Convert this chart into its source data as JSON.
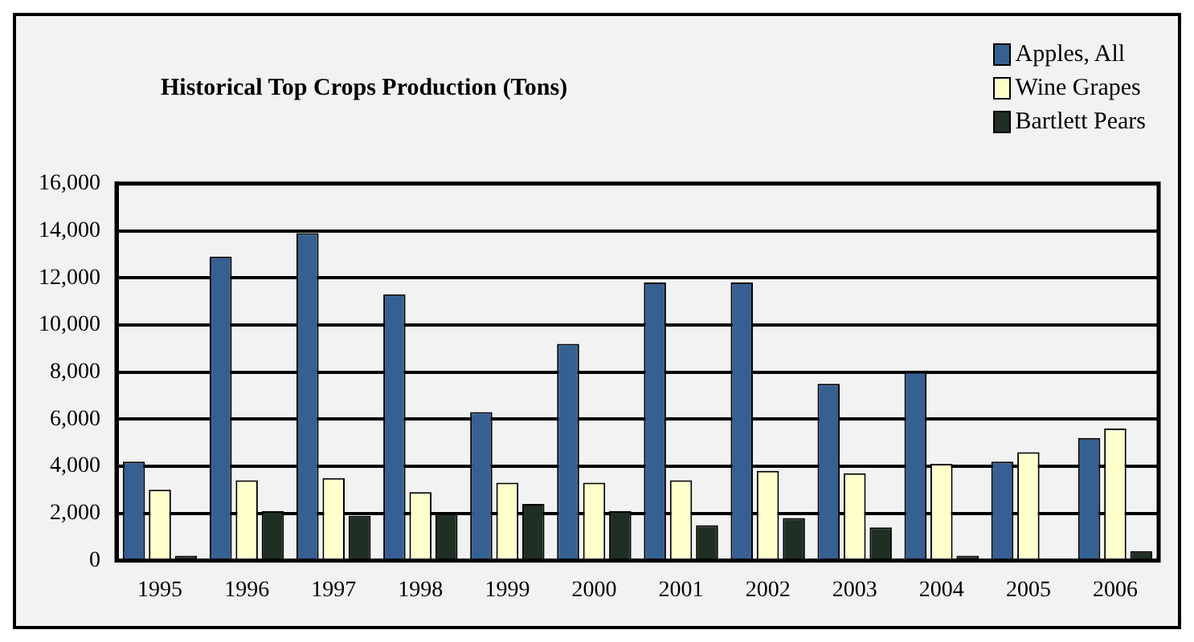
{
  "chart_data": {
    "type": "bar",
    "title": "Historical Top Crops Production (Tons)",
    "categories": [
      "1995",
      "1996",
      "1997",
      "1998",
      "1999",
      "2000",
      "2001",
      "2002",
      "2003",
      "2004",
      "2005",
      "2006"
    ],
    "series": [
      {
        "name": "Apples, All",
        "color": "#366092",
        "values": [
          4200,
          12900,
          13900,
          11300,
          6300,
          9200,
          11800,
          11800,
          7500,
          8000,
          4200,
          5200
        ]
      },
      {
        "name": "Wine Grapes",
        "color": "#ffffcc",
        "values": [
          3000,
          3400,
          3500,
          2900,
          3300,
          3300,
          3400,
          3800,
          3700,
          4100,
          4600,
          5600
        ]
      },
      {
        "name": "Bartlett Pears",
        "color": "#1f2f24",
        "values": [
          200,
          2100,
          1900,
          2000,
          2400,
          2100,
          1500,
          1800,
          1400,
          200,
          0,
          400
        ]
      }
    ],
    "ylim": [
      0,
      16000
    ],
    "yticks": [
      0,
      {
        "value": 2000,
        "label": "2,000"
      },
      {
        "value": 4000,
        "label": "4,000"
      },
      {
        "value": 6000,
        "label": "6,000"
      },
      {
        "value": 8000,
        "label": "8,000"
      },
      {
        "value": 10000,
        "label": "10,000"
      },
      {
        "value": 12000,
        "label": "12,000"
      },
      {
        "value": 14000,
        "label": "14,000"
      },
      {
        "value": 16000,
        "label": "16,000"
      }
    ],
    "grid": "y",
    "legend": "top right"
  }
}
